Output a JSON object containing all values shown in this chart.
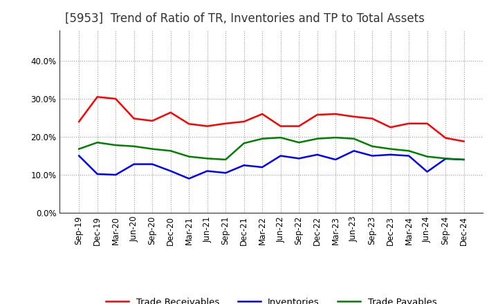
{
  "title": "[5953]  Trend of Ratio of TR, Inventories and TP to Total Assets",
  "x_labels": [
    "Sep-19",
    "Dec-19",
    "Mar-20",
    "Jun-20",
    "Sep-20",
    "Dec-20",
    "Mar-21",
    "Jun-21",
    "Sep-21",
    "Dec-21",
    "Mar-22",
    "Jun-22",
    "Sep-22",
    "Dec-22",
    "Mar-23",
    "Jun-23",
    "Sep-23",
    "Dec-23",
    "Mar-24",
    "Jun-24",
    "Sep-24",
    "Dec-24"
  ],
  "trade_receivables": [
    0.24,
    0.305,
    0.3,
    0.248,
    0.242,
    0.264,
    0.234,
    0.228,
    0.235,
    0.24,
    0.26,
    0.228,
    0.228,
    0.258,
    0.26,
    0.253,
    0.248,
    0.225,
    0.235,
    0.235,
    0.197,
    0.188
  ],
  "inventories": [
    0.15,
    0.102,
    0.1,
    0.128,
    0.128,
    0.11,
    0.09,
    0.11,
    0.105,
    0.125,
    0.12,
    0.15,
    0.143,
    0.153,
    0.14,
    0.163,
    0.15,
    0.153,
    0.15,
    0.108,
    0.142,
    0.14
  ],
  "trade_payables": [
    0.168,
    0.185,
    0.178,
    0.175,
    0.168,
    0.163,
    0.148,
    0.143,
    0.14,
    0.183,
    0.195,
    0.198,
    0.185,
    0.195,
    0.198,
    0.195,
    0.175,
    0.168,
    0.163,
    0.148,
    0.143,
    0.14
  ],
  "tr_color": "#ff0000",
  "inv_color": "#0000ff",
  "tp_color": "#008000",
  "ylim": [
    0.0,
    0.48
  ],
  "yticks": [
    0.0,
    0.1,
    0.2,
    0.3,
    0.4
  ],
  "legend_labels": [
    "Trade Receivables",
    "Inventories",
    "Trade Payables"
  ],
  "background_color": "#ffffff",
  "plot_bg_color": "#ffffff",
  "grid_color": "#999999",
  "title_fontsize": 12,
  "tick_fontsize": 8.5,
  "legend_fontsize": 9.5
}
